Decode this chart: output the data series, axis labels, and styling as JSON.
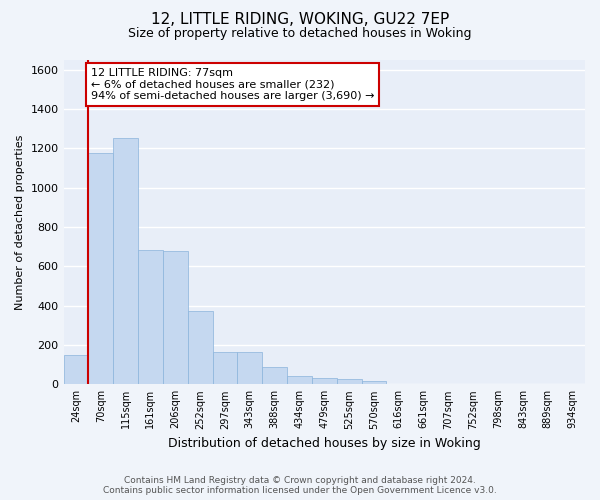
{
  "title1": "12, LITTLE RIDING, WOKING, GU22 7EP",
  "title2": "Size of property relative to detached houses in Woking",
  "xlabel": "Distribution of detached houses by size in Woking",
  "ylabel": "Number of detached properties",
  "categories": [
    "24sqm",
    "70sqm",
    "115sqm",
    "161sqm",
    "206sqm",
    "252sqm",
    "297sqm",
    "343sqm",
    "388sqm",
    "434sqm",
    "479sqm",
    "525sqm",
    "570sqm",
    "616sqm",
    "661sqm",
    "707sqm",
    "752sqm",
    "798sqm",
    "843sqm",
    "889sqm",
    "934sqm"
  ],
  "values": [
    150,
    1175,
    1255,
    685,
    680,
    375,
    165,
    165,
    90,
    40,
    30,
    25,
    18,
    0,
    0,
    0,
    0,
    0,
    0,
    0,
    0
  ],
  "bar_color": "#c5d8f0",
  "bar_edgecolor": "#8ab4dc",
  "ylim": [
    0,
    1650
  ],
  "yticks": [
    0,
    200,
    400,
    600,
    800,
    1000,
    1200,
    1400,
    1600
  ],
  "vline_x": 0.5,
  "vline_color": "#cc0000",
  "annotation_title": "12 LITTLE RIDING: 77sqm",
  "annotation_line1": "← 6% of detached houses are smaller (232)",
  "annotation_line2": "94% of semi-detached houses are larger (3,690) →",
  "annotation_box_color": "#cc0000",
  "footer_line1": "Contains HM Land Registry data © Crown copyright and database right 2024.",
  "footer_line2": "Contains public sector information licensed under the Open Government Licence v3.0.",
  "bg_color": "#f0f4fa",
  "plot_bg_color": "#e8eef8",
  "grid_color": "#ffffff",
  "title1_fontsize": 11,
  "title2_fontsize": 9,
  "ylabel_fontsize": 8,
  "xlabel_fontsize": 9,
  "tick_fontsize": 7,
  "annotation_fontsize": 8,
  "footer_fontsize": 6.5
}
